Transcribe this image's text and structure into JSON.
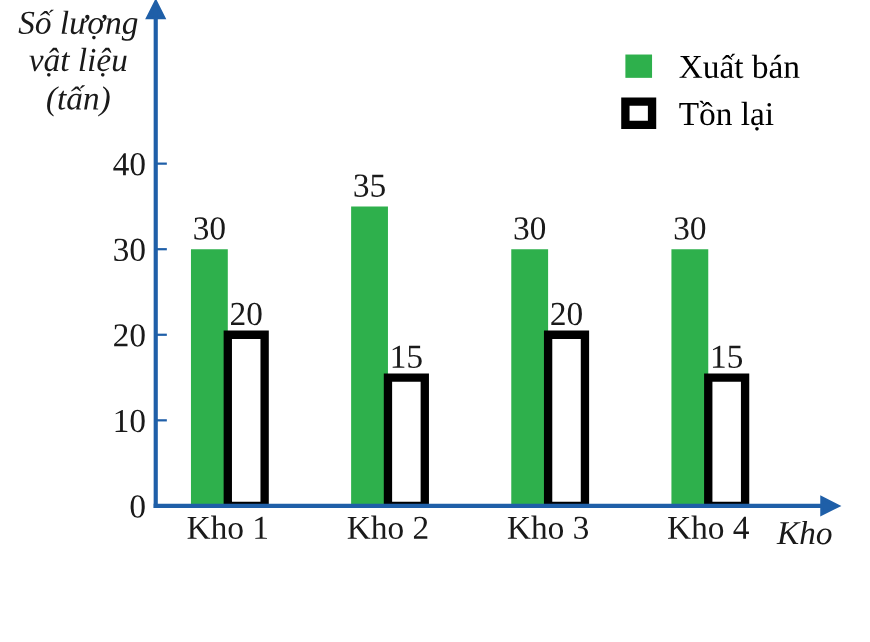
{
  "chart_data": {
    "type": "bar",
    "ylabel": "Số lượng\nvật liệu\n(tấn)",
    "xlabel": "Kho",
    "categories": [
      "Kho 1",
      "Kho 2",
      "Kho 3",
      "Kho 4"
    ],
    "series": [
      {
        "name": "Xuất bán",
        "color": "#2eb04c",
        "values": [
          30,
          35,
          30,
          30
        ]
      },
      {
        "name": "Tồn lại",
        "color": "#ffffff",
        "values": [
          20,
          15,
          20,
          15
        ]
      }
    ],
    "ylim": [
      0,
      58
    ],
    "yticks": [
      0,
      10,
      20,
      30,
      40
    ],
    "grid": false,
    "legend": "top right",
    "data_labels": true
  }
}
